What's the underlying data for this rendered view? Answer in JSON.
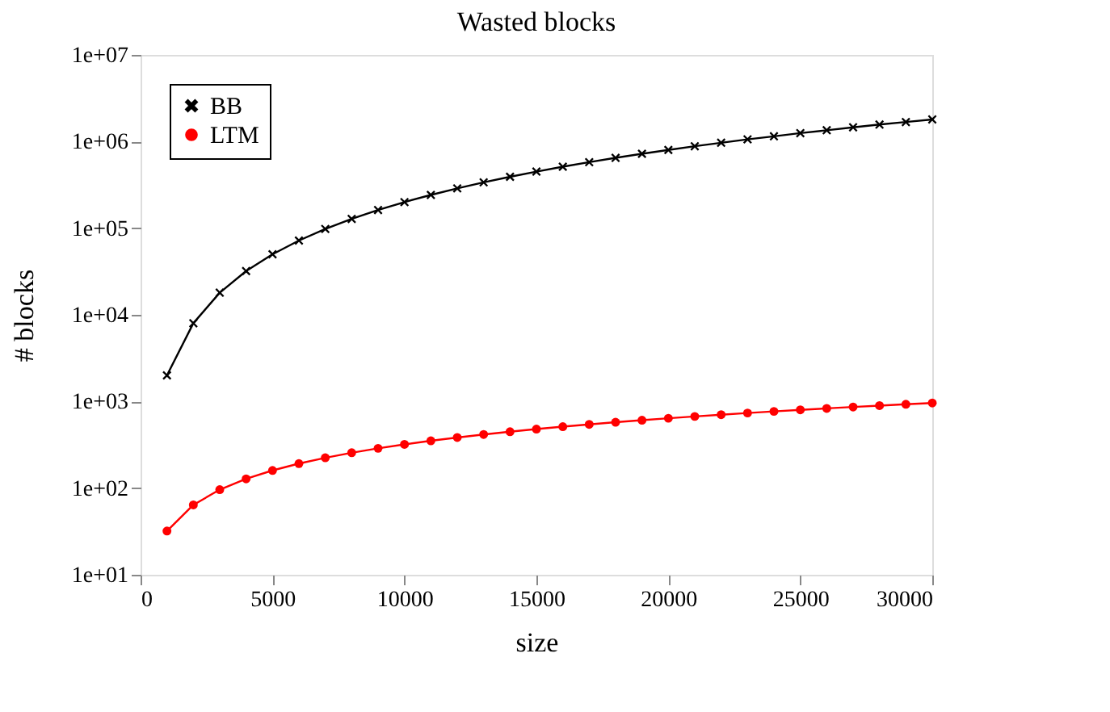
{
  "chart_data": {
    "type": "line",
    "title": "Wasted blocks",
    "xlabel": "size",
    "ylabel": "# blocks",
    "x": [
      1000,
      2000,
      3000,
      4000,
      5000,
      6000,
      7000,
      8000,
      9000,
      10000,
      11000,
      12000,
      13000,
      14000,
      15000,
      16000,
      17000,
      18000,
      19000,
      20000,
      21000,
      22000,
      23000,
      24000,
      25000,
      26000,
      27000,
      28000,
      29000,
      30000
    ],
    "series": [
      {
        "name": "BB",
        "color": "#000000",
        "marker": "cross",
        "values": [
          2000,
          8000,
          18000,
          32000,
          50000,
          72000,
          98000,
          128000,
          162000,
          200000,
          242000,
          288000,
          338000,
          392000,
          450000,
          512000,
          578000,
          648000,
          722000,
          800000,
          882000,
          968000,
          1060000,
          1150000,
          1250000,
          1350000,
          1460000,
          1570000,
          1680000,
          1800000
        ]
      },
      {
        "name": "LTM",
        "color": "#ff0000",
        "marker": "circle",
        "values": [
          32,
          64,
          96,
          128,
          160,
          192,
          224,
          256,
          288,
          320,
          352,
          384,
          416,
          448,
          480,
          512,
          544,
          576,
          608,
          640,
          672,
          704,
          736,
          768,
          800,
          832,
          864,
          896,
          928,
          960
        ]
      }
    ],
    "log": "y",
    "grid": false,
    "legend": "top left",
    "line_style": "solid",
    "xlim": [
      0,
      30000
    ],
    "xticks": [
      0,
      5000,
      10000,
      15000,
      20000,
      25000,
      30000
    ],
    "ylim": [
      10,
      10000000
    ],
    "yticks": [
      {
        "value": 10,
        "label": "1e+01"
      },
      {
        "value": 100,
        "label": "1e+02"
      },
      {
        "value": 1000,
        "label": "1e+03"
      },
      {
        "value": 10000,
        "label": "1e+04"
      },
      {
        "value": 100000,
        "label": "1e+05"
      },
      {
        "value": 1000000,
        "label": "1e+06"
      },
      {
        "value": 10000000,
        "label": "1e+07"
      }
    ]
  }
}
